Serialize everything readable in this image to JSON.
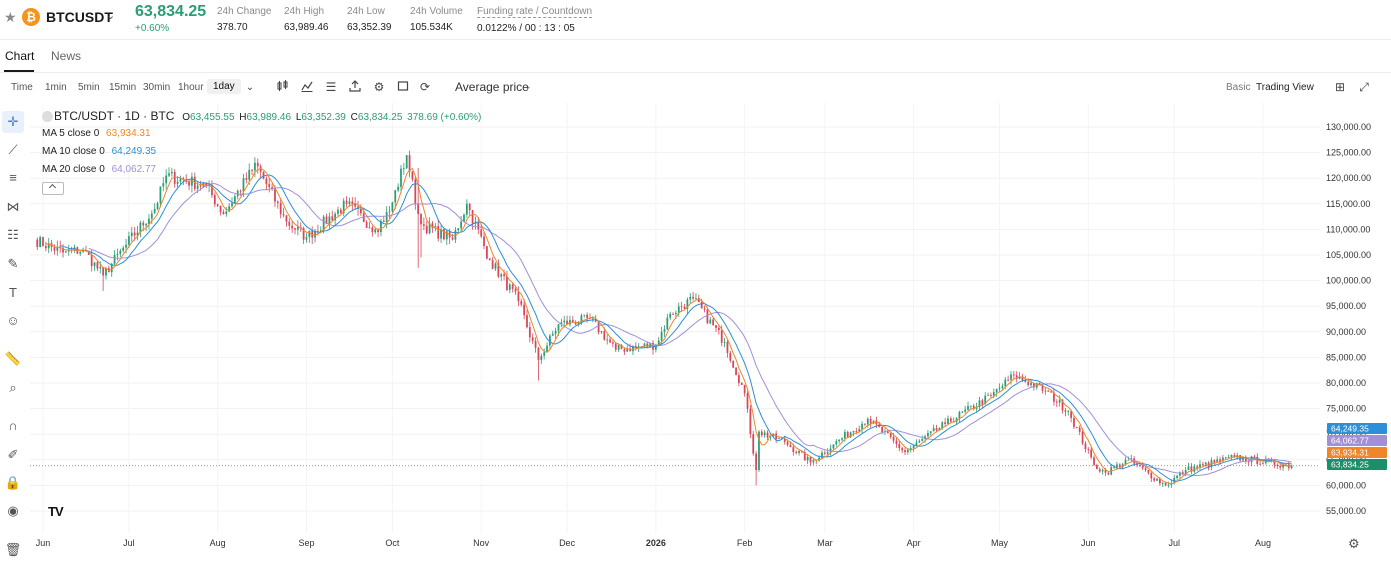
{
  "ticker": {
    "symbol": "BTCUSDT",
    "coin_icon": "bitcoin-icon",
    "coin_glyph": "₿",
    "price": "63,834.25",
    "change_pct": "+0.60%",
    "stats": [
      {
        "label": "24h Change",
        "value": "378.70"
      },
      {
        "label": "24h High",
        "value": "63,989.46"
      },
      {
        "label": "24h Low",
        "value": "63,352.39"
      },
      {
        "label": "24h Volume",
        "value": "105.534K"
      },
      {
        "label": "Funding rate / Countdown",
        "value": "0.0122% / 00 : 13 : 05"
      }
    ]
  },
  "tabs": [
    "Chart",
    "News"
  ],
  "toolbar": {
    "timeframes": [
      "Time",
      "1min",
      "5min",
      "15min",
      "30min",
      "1hour",
      "1day"
    ],
    "selected_timeframe": "1day",
    "icons": [
      "candle-type-icon",
      "indicators-icon",
      "list-icon",
      "upload-icon",
      "settings-icon",
      "fullscreen-box-icon",
      "refresh-icon"
    ],
    "price_type": "Average price",
    "views": [
      "Basic",
      "Trading View"
    ],
    "selected_view": "Trading View",
    "right_icons": [
      "layout-grid-icon",
      "expand-icon"
    ]
  },
  "tools": [
    "crosshair-icon",
    "trend-line-icon",
    "horizontal-lines-icon",
    "pattern-icon",
    "fib-icon",
    "brush-icon",
    "text-icon",
    "emoji-icon",
    "ruler-icon",
    "zoom-icon",
    "magnet-icon",
    "lock-edit-icon",
    "lock-icon",
    "eye-icon",
    "trash-icon"
  ],
  "chart_data": {
    "type": "line",
    "symbol_title": "BTC/USDT · 1D · BTC",
    "ohlc": {
      "o": "63,455.55",
      "h": "63,989.46",
      "l": "63,352.39",
      "c": "63,834.25",
      "change": "378.69 (+0.60%)"
    },
    "ma": [
      {
        "label": "MA 5 close 0",
        "value": "63,934.31",
        "color": "#f0862a"
      },
      {
        "label": "MA 10 close 0",
        "value": "64,249.35",
        "color": "#2d8fd7"
      },
      {
        "label": "MA 20 close 0",
        "value": "64,062.77",
        "color": "#a28fd8"
      }
    ],
    "y_ticks": [
      55000,
      60000,
      65000,
      70000,
      75000,
      80000,
      85000,
      90000,
      95000,
      100000,
      105000,
      110000,
      115000,
      120000,
      125000,
      130000
    ],
    "y_tick_labels": [
      "55,000.00",
      "60,000.00",
      "65,000.00",
      "70,000.00",
      "75,000.00",
      "80,000.00",
      "85,000.00",
      "90,000.00",
      "95,000.00",
      "100,000.00",
      "105,000.00",
      "110,000.00",
      "115,000.00",
      "120,000.00",
      "125,000.00",
      "130,000.00"
    ],
    "ylim": [
      52500,
      132000
    ],
    "x_ticks": [
      "Jun",
      "Jul",
      "Aug",
      "Sep",
      "Oct",
      "Nov",
      "Dec",
      "2026",
      "Feb",
      "Mar",
      "Apr",
      "May",
      "Jun",
      "Jul",
      "Aug"
    ],
    "x_tick_bold": "2026",
    "x_tick_dates": [
      "2025-06-01",
      "2025-07-01",
      "2025-08-01",
      "2025-09-01",
      "2025-10-01",
      "2025-11-01",
      "2025-12-01",
      "2026-01-01",
      "2026-02-01",
      "2026-03-01",
      "2026-04-01",
      "2026-05-01",
      "2026-06-01",
      "2026-07-01",
      "2026-08-01"
    ],
    "start_date": "2025-05-29",
    "up_color": "#2a9d73",
    "down_color": "#d9455a",
    "price_badges": [
      {
        "value": "64,249.35",
        "color": "#2d8fd7"
      },
      {
        "value": "64,062.77",
        "color": "#a28fd8"
      },
      {
        "value": "63,934.31",
        "color": "#f0862a"
      },
      {
        "value": "63,834.25",
        "color": "#1c8f6a"
      }
    ],
    "last_price": 63834.25,
    "anchors": [
      [
        "2025-05-29",
        108000
      ],
      [
        "2025-06-08",
        105500
      ],
      [
        "2025-06-15",
        106000
      ],
      [
        "2025-06-22",
        101000
      ],
      [
        "2025-06-30",
        107000
      ],
      [
        "2025-07-10",
        114000
      ],
      [
        "2025-07-14",
        120500
      ],
      [
        "2025-07-28",
        118500
      ],
      [
        "2025-08-03",
        113000
      ],
      [
        "2025-08-13",
        121500
      ],
      [
        "2025-08-14",
        123000
      ],
      [
        "2025-08-25",
        111500
      ],
      [
        "2025-09-01",
        108500
      ],
      [
        "2025-09-15",
        115000
      ],
      [
        "2025-09-25",
        110000
      ],
      [
        "2025-09-30",
        113500
      ],
      [
        "2025-10-06",
        124500
      ],
      [
        "2025-10-10",
        113000
      ],
      [
        "2025-10-11",
        111000
      ],
      [
        "2025-10-22",
        108000
      ],
      [
        "2025-10-27",
        115000
      ],
      [
        "2025-11-04",
        104000
      ],
      [
        "2025-11-14",
        96000
      ],
      [
        "2025-11-21",
        84500
      ],
      [
        "2025-11-28",
        91500
      ],
      [
        "2025-12-09",
        92500
      ],
      [
        "2025-12-18",
        86500
      ],
      [
        "2026-01-01",
        87500
      ],
      [
        "2026-01-06",
        93500
      ],
      [
        "2026-01-14",
        96500
      ],
      [
        "2026-01-25",
        88000
      ],
      [
        "2026-02-01",
        78000
      ],
      [
        "2026-02-05",
        63000
      ],
      [
        "2026-02-06",
        70500
      ],
      [
        "2026-02-15",
        68500
      ],
      [
        "2026-02-24",
        64500
      ],
      [
        "2026-03-04",
        68000
      ],
      [
        "2026-03-16",
        73000
      ],
      [
        "2026-03-29",
        66500
      ],
      [
        "2026-04-12",
        72000
      ],
      [
        "2026-04-28",
        77500
      ],
      [
        "2026-05-06",
        81500
      ],
      [
        "2026-05-17",
        78500
      ],
      [
        "2026-05-25",
        74500
      ],
      [
        "2026-06-03",
        64000
      ],
      [
        "2026-06-07",
        62500
      ],
      [
        "2026-06-15",
        65000
      ],
      [
        "2026-06-28",
        60000
      ],
      [
        "2026-07-05",
        63000
      ],
      [
        "2026-07-22",
        65500
      ],
      [
        "2026-08-11",
        63834
      ]
    ],
    "spikes": [
      {
        "date": "2025-06-22",
        "low": 98000
      },
      {
        "date": "2025-10-10",
        "high": 122000,
        "low": 102500
      },
      {
        "date": "2025-10-11",
        "low": 104500
      },
      {
        "date": "2025-11-21",
        "low": 80500
      },
      {
        "date": "2026-02-05",
        "low": 60000
      }
    ]
  }
}
